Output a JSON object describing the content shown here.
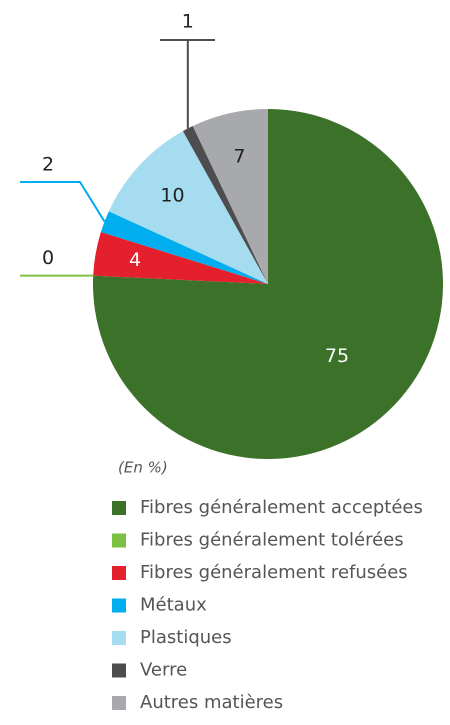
{
  "chart_data": {
    "type": "pie",
    "note": "(En %)",
    "categories": [
      "Fibres généralement acceptées",
      "Fibres généralement tolérées",
      "Fibres généralement refusées",
      "Métaux",
      "Plastiques",
      "Verre",
      "Autres matières"
    ],
    "values": [
      75,
      0,
      4,
      2,
      10,
      1,
      7
    ],
    "colors": [
      "#3b7128",
      "#7dc142",
      "#e3202c",
      "#00aeef",
      "#a5dcf0",
      "#4d4d4f",
      "#a7a9ac"
    ]
  }
}
